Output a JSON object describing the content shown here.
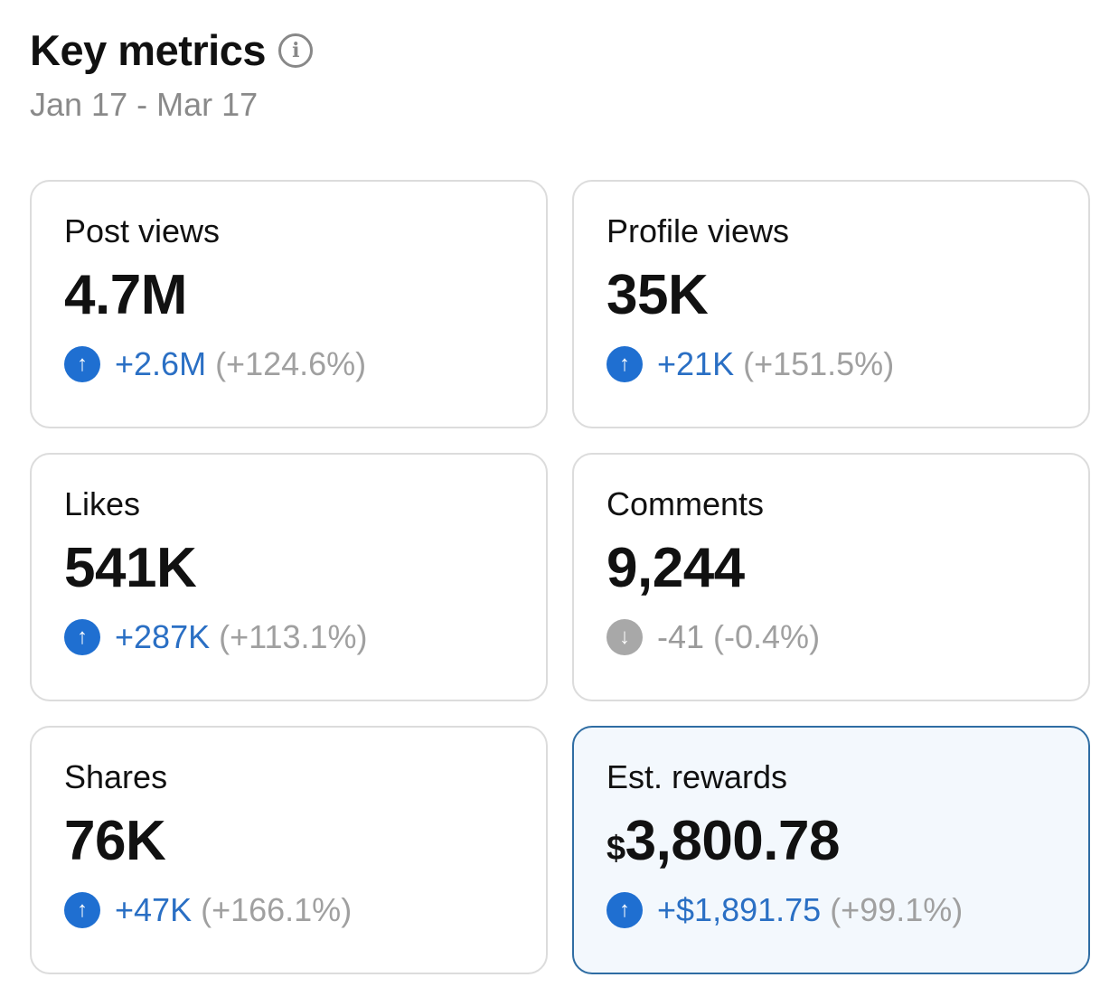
{
  "header": {
    "title": "Key metrics",
    "date_range": "Jan 17 - Mar 17",
    "info_icon": "info-icon"
  },
  "colors": {
    "up": "#1f6fd1",
    "down": "#a8a8a8",
    "highlight_border": "#2f6da3"
  },
  "metrics": [
    {
      "label": "Post views",
      "value": "4.7M",
      "delta": "+2.6M",
      "pct": "(+124.6%)",
      "dir": "up"
    },
    {
      "label": "Profile views",
      "value": "35K",
      "delta": "+21K",
      "pct": "(+151.5%)",
      "dir": "up"
    },
    {
      "label": "Likes",
      "value": "541K",
      "delta": "+287K",
      "pct": "(+113.1%)",
      "dir": "up"
    },
    {
      "label": "Comments",
      "value": "9,244",
      "delta": "-41",
      "pct": "(-0.4%)",
      "dir": "down"
    },
    {
      "label": "Shares",
      "value": "76K",
      "delta": "+47K",
      "pct": "(+166.1%)",
      "dir": "up"
    },
    {
      "label": "Est. rewards",
      "currency": "$",
      "value": "3,800.78",
      "delta": "+$1,891.75",
      "pct": "(+99.1%)",
      "dir": "up"
    }
  ]
}
